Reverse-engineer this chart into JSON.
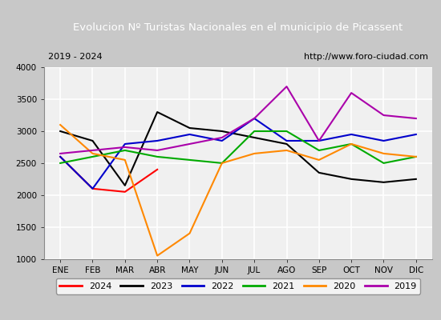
{
  "title": "Evolucion Nº Turistas Nacionales en el municipio de Picassent",
  "subtitle_left": "2019 - 2024",
  "subtitle_right": "http://www.foro-ciudad.com",
  "months": [
    "ENE",
    "FEB",
    "MAR",
    "ABR",
    "MAY",
    "JUN",
    "JUL",
    "AGO",
    "SEP",
    "OCT",
    "NOV",
    "DIC"
  ],
  "ylim": [
    1000,
    4000
  ],
  "yticks": [
    1000,
    1500,
    2000,
    2500,
    3000,
    3500,
    4000
  ],
  "series": {
    "2024": {
      "color": "#ff0000",
      "values": [
        2600,
        2100,
        2050,
        2400,
        null,
        null,
        null,
        null,
        null,
        null,
        null,
        null
      ]
    },
    "2023": {
      "color": "#000000",
      "values": [
        3000,
        2850,
        2150,
        3300,
        3050,
        3000,
        2900,
        2800,
        2350,
        2250,
        2200,
        2250
      ]
    },
    "2022": {
      "color": "#0000cc",
      "values": [
        2600,
        2100,
        2800,
        2850,
        2950,
        2850,
        3200,
        2850,
        2850,
        2950,
        2850,
        2950
      ]
    },
    "2021": {
      "color": "#00aa00",
      "values": [
        2500,
        2600,
        2700,
        2600,
        2550,
        2500,
        3000,
        3000,
        2700,
        2800,
        2500,
        2600
      ]
    },
    "2020": {
      "color": "#ff8800",
      "values": [
        3100,
        2650,
        2550,
        1050,
        1400,
        2500,
        2650,
        2700,
        2550,
        2800,
        2650,
        2600
      ]
    },
    "2019": {
      "color": "#aa00aa",
      "values": [
        2650,
        2700,
        2750,
        2700,
        2800,
        2900,
        3200,
        3700,
        2850,
        3600,
        3250,
        3200
      ]
    }
  },
  "years_order": [
    "2024",
    "2023",
    "2022",
    "2021",
    "2020",
    "2019"
  ],
  "title_bg_color": "#4d7ebf",
  "title_text_color": "#ffffff",
  "plot_bg_color": "#f0f0f0",
  "grid_color": "#ffffff",
  "outer_bg_color": "#c8c8c8",
  "subtitle_bg_color": "#d3d3d3"
}
